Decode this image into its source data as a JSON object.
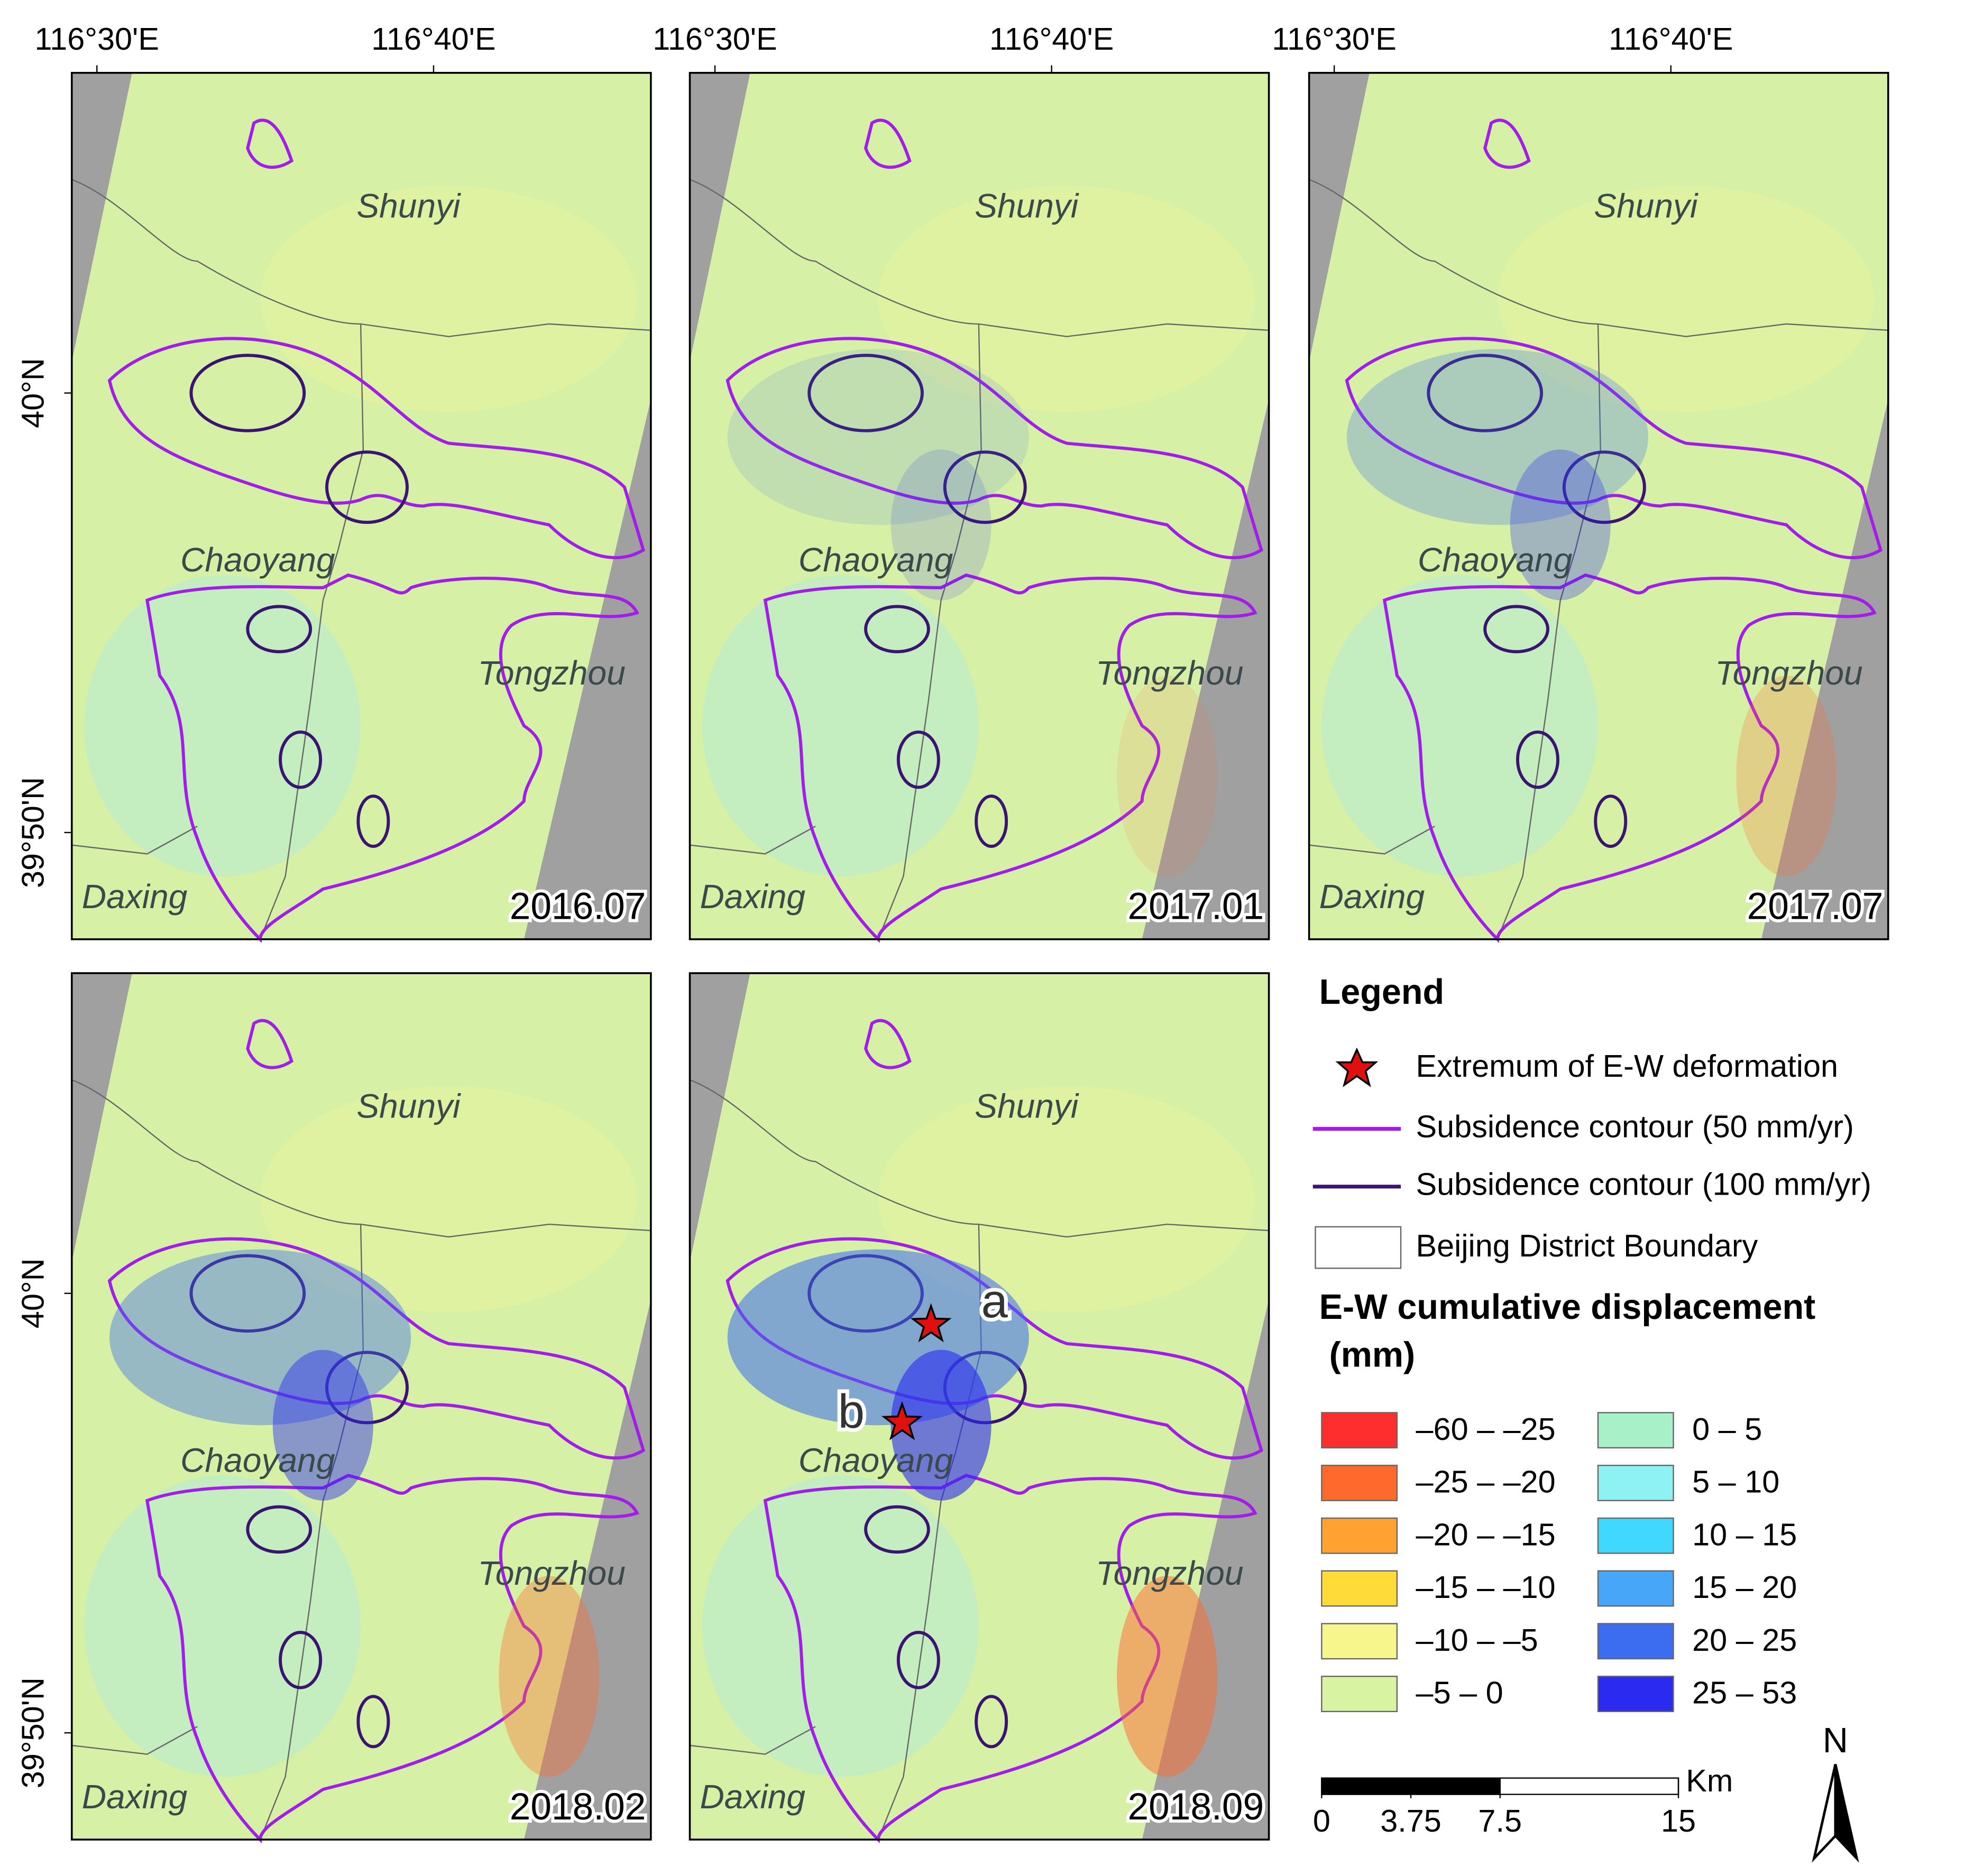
{
  "graticule": {
    "lon": [
      "116°30'E",
      "116°40'E"
    ],
    "lat": [
      "40°N",
      "39°50'N"
    ]
  },
  "panels": [
    {
      "date": "2016.07",
      "districts": [
        "Shunyi",
        "Chaoyang",
        "Tongzhou",
        "Daxing"
      ]
    },
    {
      "date": "2017.01",
      "districts": [
        "Shunyi",
        "Chaoyang",
        "Tongzhou",
        "Daxing"
      ]
    },
    {
      "date": "2017.07",
      "districts": [
        "Shunyi",
        "Chaoyang",
        "Tongzhou",
        "Daxing"
      ]
    },
    {
      "date": "2018.02",
      "districts": [
        "Shunyi",
        "Chaoyang",
        "Tongzhou",
        "Daxing"
      ]
    },
    {
      "date": "2018.09",
      "districts": [
        "Shunyi",
        "Chaoyang",
        "Tongzhou",
        "Daxing"
      ],
      "stars": [
        "a",
        "b"
      ]
    }
  ],
  "legend": {
    "title": "Legend",
    "items": [
      "Extremum of E-W deformation",
      "Subsidence contour (50 mm/yr)",
      "Subsidence contour (100 mm/yr)",
      "Beijing District Boundary"
    ],
    "colorbar_title": [
      "E-W cumulative displacement",
      "(mm)"
    ],
    "classes": [
      {
        "label": "–60 – –25",
        "color": "#ff2e2e"
      },
      {
        "label": "–25 – –20",
        "color": "#ff6a2c"
      },
      {
        "label": "–20 – –15",
        "color": "#ffa232"
      },
      {
        "label": "–15 – –10",
        "color": "#ffdb38"
      },
      {
        "label": "–10 – –5",
        "color": "#f6f68c"
      },
      {
        "label": "–5 – 0",
        "color": "#d8f4a2"
      },
      {
        "label": "0 – 5",
        "color": "#a8f0c8"
      },
      {
        "label": "5 – 10",
        "color": "#8ef2f2"
      },
      {
        "label": "10 – 15",
        "color": "#40d8ff"
      },
      {
        "label": "15 – 20",
        "color": "#48a6f8"
      },
      {
        "label": "20 – 25",
        "color": "#3c6cf0"
      },
      {
        "label": "25 – 53",
        "color": "#2a2af0"
      }
    ]
  },
  "scale_bar": {
    "unit": "Km",
    "ticks": [
      0,
      3.75,
      7.5,
      15
    ]
  },
  "north": "N"
}
